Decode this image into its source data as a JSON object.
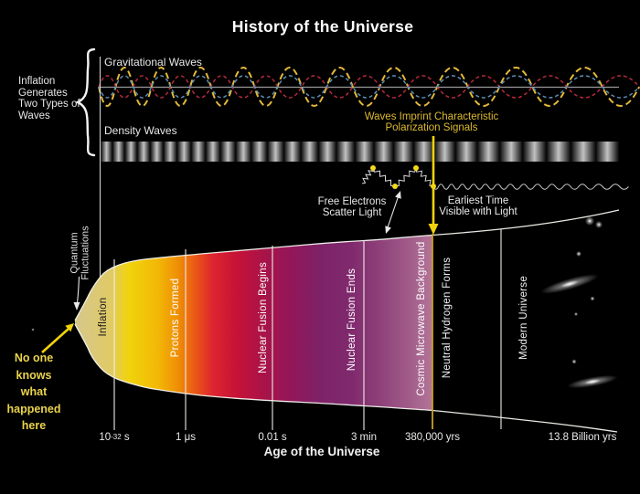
{
  "title": "History of the Universe",
  "left_annotation": {
    "lines": [
      "Inflation",
      "Generates",
      "Two Types of",
      "Waves"
    ]
  },
  "wave_panels": {
    "gravitational": "Gravitational Waves",
    "density": "Density Waves"
  },
  "notes": {
    "polarization": {
      "line1": "Waves Imprint Characteristic",
      "line2": "Polarization Signals"
    },
    "free_electrons": {
      "line1": "Free Electrons",
      "line2": "Scatter Light"
    },
    "earliest_time": {
      "line1": "Earliest Time",
      "line2": "Visible with Light"
    },
    "quantum": {
      "line1": "Quantum",
      "line2": "Fluctuations"
    },
    "no_one_knows": {
      "lines": [
        "No one",
        "knows",
        "what",
        "happened",
        "here"
      ]
    }
  },
  "horn_sections": [
    "Inflation",
    "Protons Formed",
    "Nuclear Fusion Begins",
    "Nuclear Fusion Ends",
    "Cosmic Microwave Background",
    "Neutral Hydrogen Forms",
    "Modern Universe"
  ],
  "axis": {
    "title": "Age of the Universe",
    "ticks": [
      {
        "prefix": "10",
        "exponent": "-32",
        "suffix": " s"
      },
      {
        "text": "1 μs"
      },
      {
        "text": "0.01 s"
      },
      {
        "text": "3 min"
      },
      {
        "text": "380,000 yrs"
      },
      {
        "text": "13.8 Billion yrs"
      }
    ]
  },
  "colors": {
    "background": "#000000",
    "title_text": "#ffffff",
    "gold_annotation": "#dcb92f",
    "note_yellow": "#e9d34c",
    "arrow_yellow": "#f2d30b",
    "wave_yellow": "#e2b83a",
    "wave_red": "#b52a3e",
    "wave_blue": "#5b8fb5",
    "cmb_line_gold": "#c9a127",
    "horn_tan": "#d5c78c",
    "horn_yellow": "#f1d30c",
    "horn_orange": "#ef8d05",
    "horn_red": "#dd2530",
    "horn_crimson": "#c61238",
    "horn_purple": "#7e2268",
    "horn_mauve": "#b37597"
  }
}
